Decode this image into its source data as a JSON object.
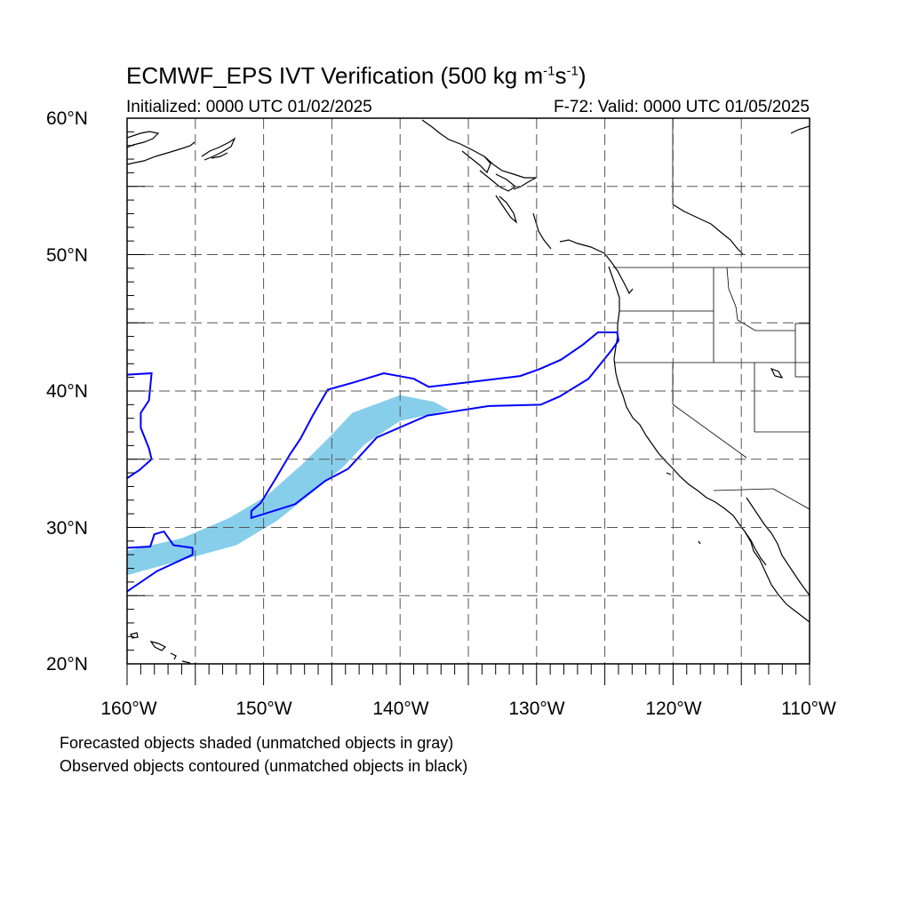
{
  "title": {
    "main": "ECMWF_EPS IVT Verification (500 kg m",
    "sup1": "-1",
    "mid": "s",
    "sup2": "-1",
    "end": ")"
  },
  "subtitle": {
    "initialized": "Initialized: 0000 UTC 01/02/2025",
    "valid": "F-72: Valid: 0000 UTC 01/05/2025"
  },
  "axes": {
    "lat_ticks": [
      {
        "value": 60,
        "label": "60°N"
      },
      {
        "value": 50,
        "label": "50°N"
      },
      {
        "value": 40,
        "label": "40°N"
      },
      {
        "value": 30,
        "label": "30°N"
      },
      {
        "value": 20,
        "label": "20°N"
      }
    ],
    "lon_ticks": [
      {
        "value": -160,
        "label": "160°W"
      },
      {
        "value": -150,
        "label": "150°W"
      },
      {
        "value": -140,
        "label": "140°W"
      },
      {
        "value": -130,
        "label": "130°W"
      },
      {
        "value": -120,
        "label": "120°W"
      },
      {
        "value": -110,
        "label": "110°W"
      }
    ],
    "lat_range": [
      20,
      60
    ],
    "lon_range": [
      -160,
      -110
    ],
    "grid": "dashed every 5 degrees"
  },
  "legend": {
    "line1": "Forecasted objects shaded (unmatched objects in gray)",
    "line2": "Observed objects contoured (unmatched objects in black)"
  },
  "colors": {
    "forecast_fill": "#87ceeb",
    "observed_contour": "#0000ff",
    "coastline": "#000000",
    "grid": "#555555"
  },
  "objects": {
    "forecast": [
      {
        "lon": -160,
        "lat": 26.5
      },
      {
        "lon": -156,
        "lat": 27.6
      },
      {
        "lon": -152,
        "lat": 28.7
      },
      {
        "lon": -149,
        "lat": 30.5
      },
      {
        "lon": -146.5,
        "lat": 32.5
      },
      {
        "lon": -144.2,
        "lat": 34.4
      },
      {
        "lon": -142.6,
        "lat": 36.1
      },
      {
        "lon": -140,
        "lat": 37.8
      },
      {
        "lon": -136.4,
        "lat": 38.6
      },
      {
        "lon": -137.5,
        "lat": 39.2
      },
      {
        "lon": -140,
        "lat": 39.7
      },
      {
        "lon": -143.5,
        "lat": 38.4
      },
      {
        "lon": -145.2,
        "lat": 36.6
      },
      {
        "lon": -147.2,
        "lat": 34.6
      },
      {
        "lon": -149.8,
        "lat": 32.3
      },
      {
        "lon": -152.5,
        "lat": 30.7
      },
      {
        "lon": -156,
        "lat": 29.2
      },
      {
        "lon": -160,
        "lat": 28.3
      }
    ],
    "observed_main": [
      {
        "lon": -160,
        "lat": 25.3
      },
      {
        "lon": -157.8,
        "lat": 26.8
      },
      {
        "lon": -155.2,
        "lat": 28.0
      },
      {
        "lon": -155.2,
        "lat": 28.5
      },
      {
        "lon": -156.6,
        "lat": 28.7
      },
      {
        "lon": -157.3,
        "lat": 29.7
      },
      {
        "lon": -158.0,
        "lat": 29.5
      },
      {
        "lon": -158.3,
        "lat": 28.6
      },
      {
        "lon": -160,
        "lat": 28.5
      }
    ],
    "observed_band": [
      {
        "lon": -150.9,
        "lat": 30.7
      },
      {
        "lon": -147.7,
        "lat": 31.7
      },
      {
        "lon": -145.5,
        "lat": 33.4
      },
      {
        "lon": -143.8,
        "lat": 34.3
      },
      {
        "lon": -141.7,
        "lat": 36.6
      },
      {
        "lon": -138.0,
        "lat": 38.2
      },
      {
        "lon": -133.5,
        "lat": 38.9
      },
      {
        "lon": -129.7,
        "lat": 39.0
      },
      {
        "lon": -128.3,
        "lat": 39.6
      },
      {
        "lon": -126.2,
        "lat": 40.9
      },
      {
        "lon": -124.5,
        "lat": 43.0
      },
      {
        "lon": -124.0,
        "lat": 43.7
      },
      {
        "lon": -124.1,
        "lat": 44.3
      },
      {
        "lon": -125.5,
        "lat": 44.3
      },
      {
        "lon": -126.6,
        "lat": 43.4
      },
      {
        "lon": -128.2,
        "lat": 42.3
      },
      {
        "lon": -129.8,
        "lat": 41.6
      },
      {
        "lon": -131.2,
        "lat": 41.1
      },
      {
        "lon": -134.5,
        "lat": 40.7
      },
      {
        "lon": -137.9,
        "lat": 40.3
      },
      {
        "lon": -139.0,
        "lat": 40.9
      },
      {
        "lon": -141.2,
        "lat": 41.3
      },
      {
        "lon": -143.5,
        "lat": 40.6
      },
      {
        "lon": -145.3,
        "lat": 40.1
      },
      {
        "lon": -146.4,
        "lat": 38.2
      },
      {
        "lon": -147.3,
        "lat": 36.5
      },
      {
        "lon": -148.1,
        "lat": 35.3
      },
      {
        "lon": -149.1,
        "lat": 33.6
      },
      {
        "lon": -150.2,
        "lat": 31.8
      },
      {
        "lon": -150.9,
        "lat": 31.2
      }
    ],
    "observed_west": [
      {
        "lon": -160,
        "lat": 41.2
      },
      {
        "lon": -158.2,
        "lat": 41.3
      },
      {
        "lon": -158.4,
        "lat": 39.3
      },
      {
        "lon": -159.0,
        "lat": 38.4
      },
      {
        "lon": -159.0,
        "lat": 37.3
      },
      {
        "lon": -158.4,
        "lat": 35.8
      },
      {
        "lon": -158.2,
        "lat": 35.0
      },
      {
        "lon": -159.1,
        "lat": 34.2
      },
      {
        "lon": -160,
        "lat": 33.6
      }
    ]
  }
}
